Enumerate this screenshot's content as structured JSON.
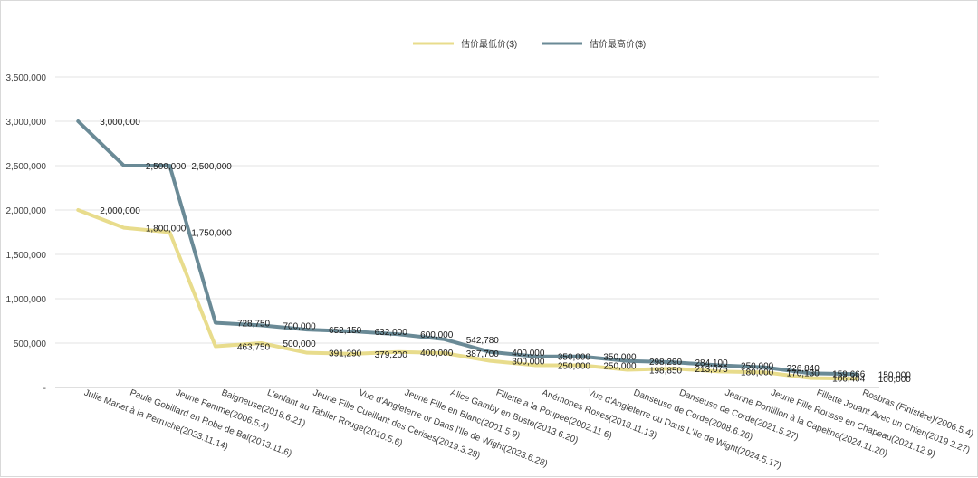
{
  "chart_data": {
    "type": "line",
    "categories": [
      "Julie Manet à la Perruche(2023.11.14)",
      "Paule Gobillard en Robe de Bal(2013.11.6)",
      "Jeune Femme(2006.5.4)",
      "Baigneuse(2018.6.21)",
      "L'enfant au Tablier Rouge(2010.5.6)",
      "Jeune Fille Cueillant des Cerises(2019.3.28)",
      "Vue d'Angleterre or Dans l'Ile de Wight(2023.6.28)",
      "Jeune Fille en Blanc(2001.5.9)",
      "Alice Gamby en Buste(2013.6.20)",
      "Fillette a la Poupee(2002.11.6)",
      "Anémones Roses(2018.11.13)",
      "Vue d'Angleterre ou Dans L'Ile de Wight(2024.5.17)",
      "Danseuse de Corde(2008.6.26)",
      "Danseuse de Corde(2021.5.27)",
      "Jeanne Pontillon à la Capeline(2024.11.20)",
      "Jeune Fille Rousse en Chapeau(2021.12.9)",
      "Fillette Jouant Avec un Chien(2019.2.27)",
      "Rosbras (Finistère)(2006.5.4)"
    ],
    "series": [
      {
        "name": "估价最低价($)",
        "color": "#e8dc8c",
        "values": [
          2000000,
          1800000,
          1750000,
          463750,
          500000,
          391290,
          379200,
          400000,
          387700,
          300000,
          250000,
          250000,
          198850,
          213075,
          180000,
          170130,
          106404,
          100000
        ],
        "labels": [
          "2,000,000",
          "1,800,000",
          "",
          "463,750",
          "500,000",
          "391,290",
          "379,200",
          "400,000",
          "387,700",
          "300,000",
          "250,000",
          "250,000",
          "198,850",
          "213,075",
          "180,000",
          "170,130",
          "106,404",
          "100,000"
        ]
      },
      {
        "name": "估价最高价($)",
        "color": "#6a8a96",
        "values": [
          3000000,
          2500000,
          2500000,
          728750,
          700000,
          652150,
          632000,
          600000,
          542780,
          400000,
          350000,
          350000,
          298290,
          284100,
          250000,
          226840,
          159666,
          150000
        ],
        "labels": [
          "3,000,000",
          "",
          "2,500,000",
          "728,750",
          "700,000",
          "652,150",
          "632,000",
          "600,000",
          "542,780",
          "400,000",
          "350,000",
          "350,000",
          "298,290",
          "284,100",
          "250,000",
          "226,840",
          "159,666",
          "150,000"
        ]
      }
    ],
    "extra_labels": [
      {
        "series": 0,
        "index": 2,
        "text": "1,750,000"
      },
      {
        "series": 1,
        "index": 1,
        "text": "2,500,000"
      }
    ],
    "yticks": [
      "-",
      "500,000",
      "1,000,000",
      "1,500,000",
      "2,000,000",
      "2,500,000",
      "3,000,000",
      "3,500,000"
    ],
    "ylim": [
      0,
      3500000
    ],
    "grid": true,
    "legend_position": "top-center"
  }
}
